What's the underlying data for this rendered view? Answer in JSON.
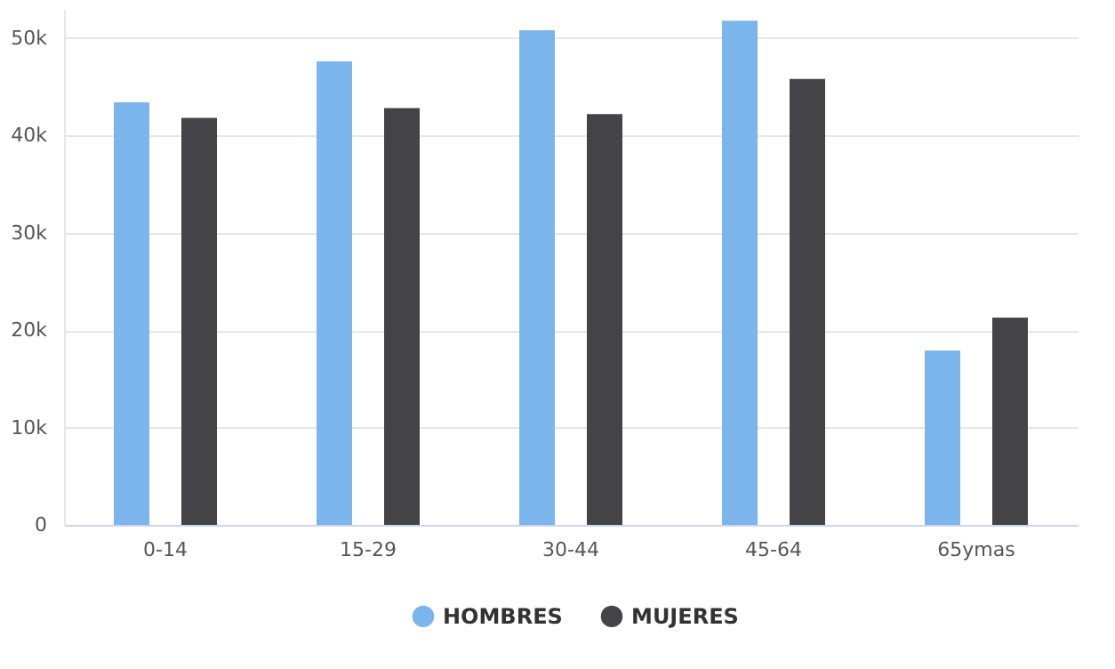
{
  "chart_data": {
    "type": "bar",
    "categories": [
      "0-14",
      "15-29",
      "30-44",
      "45-64",
      "65ymas"
    ],
    "series": [
      {
        "name": "HOMBRES",
        "color": "#7cb5ec",
        "values": [
          43400,
          47600,
          50800,
          51800,
          17900
        ]
      },
      {
        "name": "MUJERES",
        "color": "#434348",
        "values": [
          41800,
          42800,
          42200,
          45800,
          21300
        ]
      }
    ],
    "ylim": [
      0,
      53000
    ],
    "yticks": [
      {
        "value": 0,
        "label": "0"
      },
      {
        "value": 10000,
        "label": "10k"
      },
      {
        "value": 20000,
        "label": "20k"
      },
      {
        "value": 30000,
        "label": "30k"
      },
      {
        "value": 40000,
        "label": "40k"
      },
      {
        "value": 50000,
        "label": "50k"
      }
    ],
    "grid": "y",
    "legend": "bottom"
  }
}
